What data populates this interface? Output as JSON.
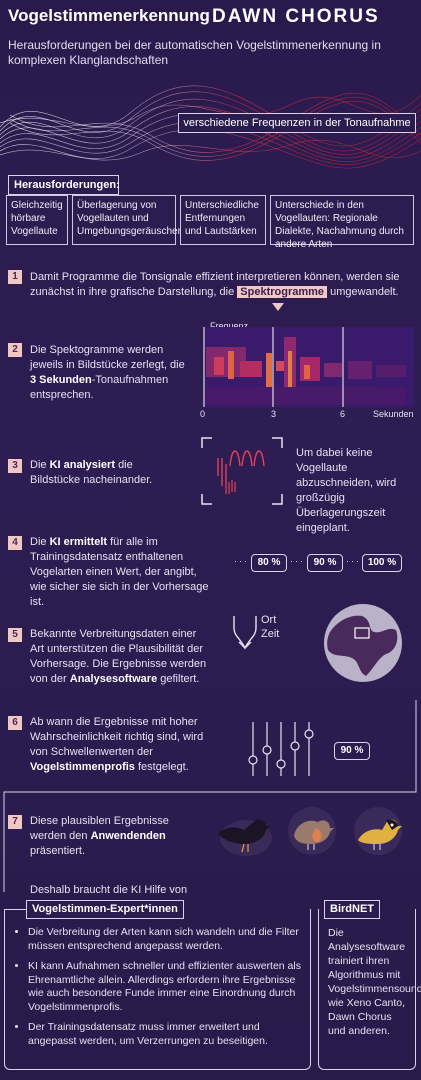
{
  "header": {
    "title": "Vogelstimmenerkennung",
    "brand": "DAWN CHORUS",
    "subtitle": "Herausforderungen bei der automatischen Vogelstimmenerkennung in komplexen Klanglandschaften"
  },
  "wave_label": "verschiedene Frequenzen in der Tonaufnahme",
  "challenges": {
    "heading": "Herausforderungen:",
    "items": [
      "Gleichzeitig hörbare Vogellaute",
      "Überlagerung von Vogellauten und Umgebungsgeräuschen",
      "Unterschiedliche Entfernungen und Lautstärken",
      "Unterschiede in den Vogellauten: Regionale Dialekte, Nachahmung durch andere Arten"
    ]
  },
  "steps": {
    "s1": {
      "num": "1",
      "pre": "Damit Programme die Tonsignale effizient interpretieren können, werden sie zunächst in ihre grafische Darstellung, die",
      "hl": "Spektrogramme",
      "post": "umgewandelt."
    },
    "s2": {
      "num": "2",
      "pre": "Die Spektogramme werden jeweils in Bildstücke zerlegt, die",
      "bold": "3 Sekunden",
      "post": "-Tonaufnahmen entsprechen."
    },
    "s3": {
      "num": "3",
      "pre": "Die",
      "bold": "KI analysiert",
      "post": "die Bildstücke nacheinander.",
      "note": "Um dabei keine Vogellaute abzuschneiden, wird großzügig Überlagerungszeit eingeplant."
    },
    "s4": {
      "num": "4",
      "pre": "Die",
      "bold": "KI ermittelt",
      "post": "für alle im Trainingsdatensatz enthaltenen Vogelarten einen Wert, der angibt, wie sicher sie sich in der Vorhersage ist."
    },
    "s5": {
      "num": "5",
      "pre": "Bekannte Verbreitungsdaten einer Art unterstützen die Plausibilität der Vorhersage. Die Ergebnisse werden von der",
      "bold": "Analysesoftware",
      "post": "gefiltert.",
      "place": "Ort",
      "time": "Zeit"
    },
    "s6": {
      "num": "6",
      "pre": "Ab wann die Ergebnisse mit hoher Wahrscheinlichkeit richtig sind, wird von Schwellenwerten der",
      "bold": "Vogelstimmenprofis",
      "post": "festgelegt.",
      "threshold": "90 %"
    },
    "s7": {
      "num": "7",
      "pre": "Diese plausiblen Ergebnisse werden den",
      "bold": "Anwendenden",
      "post": "präsentiert."
    }
  },
  "spectrogram": {
    "label": "Frequenz",
    "ticks": [
      "0",
      "3",
      "6"
    ],
    "unit": "Sekunden"
  },
  "confidence": [
    "80 %",
    "90 %",
    "100 %"
  ],
  "conclusion": {
    "intro": "Deshalb braucht die KI Hilfe von",
    "experts_label": "Vogelstimmen-Expert*innen",
    "experts_items": [
      "Die Verbreitung der Arten kann sich wandeln und die Filter müssen entsprechend angepasst werden.",
      "KI kann Aufnahmen schneller und effizienter auswerten als Ehrenamtliche allein. Allerdings erfordern ihre Ergebnisse wie auch besondere Funde immer eine Einordnung durch Vogelstimmenprofis.",
      "Der Trainingsdatensatz muss immer erweitert und angepasst werden, um Verzerrungen zu beseitigen."
    ],
    "birdnet_label": "BirdNET",
    "birdnet_text": "Die Analysesoftware trainiert ihren Algorithmus mit Vogelstimmensoundarchiven wie Xeno Canto, Dawn Chorus und anderen."
  },
  "colors": {
    "bg": "#2b1c4f",
    "accent": "#f1c7c4",
    "wave": "#e0304a"
  }
}
